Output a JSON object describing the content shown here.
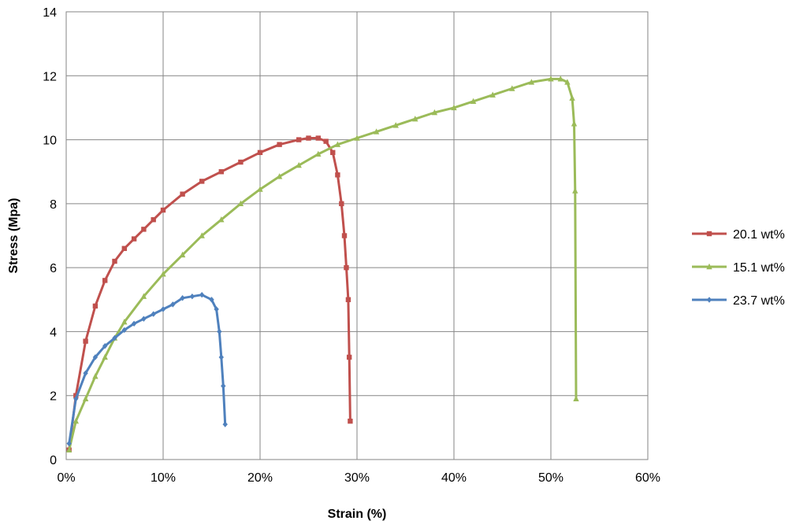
{
  "chart_data": {
    "type": "line",
    "title": "",
    "xlabel": "Strain (%)",
    "ylabel": "Stress (Mpa)",
    "xlim": [
      0,
      60
    ],
    "ylim": [
      0,
      14
    ],
    "x_ticks": [
      "0%",
      "10%",
      "20%",
      "30%",
      "40%",
      "50%",
      "60%"
    ],
    "y_ticks": [
      "0",
      "2",
      "4",
      "6",
      "8",
      "10",
      "12",
      "14"
    ],
    "grid": true,
    "legend_position": "right",
    "series": [
      {
        "name": "20.1 wt%",
        "color": "#c0504d",
        "marker": "square",
        "x": [
          0.3,
          1,
          2,
          3,
          4,
          5,
          6,
          7,
          8,
          9,
          10,
          12,
          14,
          16,
          18,
          20,
          22,
          24,
          25,
          26,
          26.8,
          27.5,
          28,
          28.4,
          28.7,
          28.9,
          29.1,
          29.2,
          29.3
        ],
        "y": [
          0.3,
          2.0,
          3.7,
          4.8,
          5.6,
          6.2,
          6.6,
          6.9,
          7.2,
          7.5,
          7.8,
          8.3,
          8.7,
          9.0,
          9.3,
          9.6,
          9.85,
          10.0,
          10.05,
          10.05,
          9.95,
          9.6,
          8.9,
          8.0,
          7.0,
          6.0,
          5.0,
          3.2,
          1.2
        ]
      },
      {
        "name": "15.1 wt%",
        "color": "#9bbb59",
        "marker": "triangle",
        "x": [
          0.3,
          1,
          2,
          3,
          4,
          5,
          6,
          8,
          10,
          12,
          14,
          16,
          18,
          20,
          22,
          24,
          26,
          28,
          30,
          32,
          34,
          36,
          38,
          40,
          42,
          44,
          46,
          48,
          50,
          51,
          51.7,
          52.2,
          52.4,
          52.5,
          52.6
        ],
        "y": [
          0.3,
          1.2,
          1.9,
          2.6,
          3.2,
          3.8,
          4.3,
          5.1,
          5.8,
          6.4,
          7.0,
          7.5,
          8.0,
          8.45,
          8.85,
          9.2,
          9.55,
          9.85,
          10.05,
          10.25,
          10.45,
          10.65,
          10.85,
          11.0,
          11.2,
          11.4,
          11.6,
          11.8,
          11.9,
          11.9,
          11.8,
          11.3,
          10.5,
          8.4,
          1.9
        ]
      },
      {
        "name": "23.7 wt%",
        "color": "#4f81bd",
        "marker": "diamond",
        "x": [
          0.3,
          1,
          2,
          3,
          4,
          5,
          6,
          7,
          8,
          9,
          10,
          11,
          12,
          13,
          14,
          15,
          15.5,
          15.8,
          16,
          16.2,
          16.4
        ],
        "y": [
          0.5,
          1.9,
          2.7,
          3.2,
          3.55,
          3.8,
          4.05,
          4.25,
          4.4,
          4.55,
          4.7,
          4.85,
          5.05,
          5.1,
          5.15,
          5.0,
          4.7,
          4.0,
          3.2,
          2.3,
          1.1
        ]
      }
    ]
  }
}
